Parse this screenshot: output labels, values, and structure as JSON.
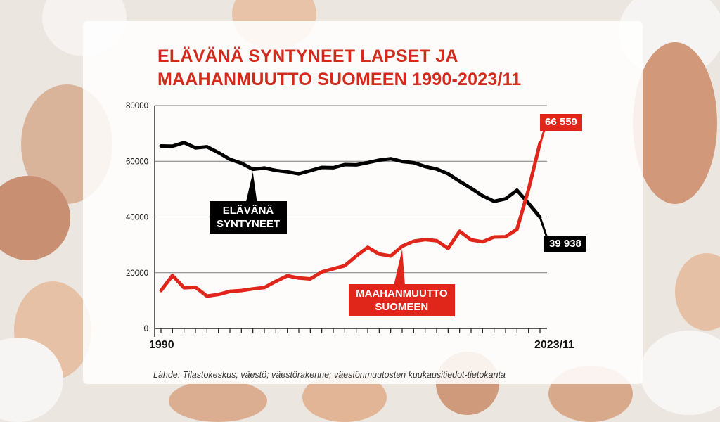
{
  "title_lines": [
    "ELÄVÄNÄ SYNTYNEET LAPSET JA",
    "MAAHANMUUTTO SUOMEEN 1990-2023/11"
  ],
  "source": "Lähde: Tilastokeskus, väestö; väestörakenne; väestönmuutosten kuukausitiedot-tietokanta",
  "colors": {
    "births": "#000000",
    "immigration": "#e0261a",
    "title": "#d42a1c"
  },
  "chart_data": {
    "type": "line",
    "title": "ELÄVÄNÄ SYNTYNEET LAPSET JA MAAHANMUUTTO SUOMEEN 1990-2023/11",
    "x": [
      1990,
      1991,
      1992,
      1993,
      1994,
      1995,
      1996,
      1997,
      1998,
      1999,
      2000,
      2001,
      2002,
      2003,
      2004,
      2005,
      2006,
      2007,
      2008,
      2009,
      2010,
      2011,
      2012,
      2013,
      2014,
      2015,
      2016,
      2017,
      2018,
      2019,
      2020,
      2021,
      2022,
      2023
    ],
    "x_labels": {
      "start": "1990",
      "end": "2023/11"
    },
    "ylim": [
      0,
      80000
    ],
    "yticks": [
      "0",
      "20000",
      "40000",
      "60000",
      "80000"
    ],
    "yticks_values": [
      0,
      20000,
      40000,
      60000,
      80000
    ],
    "grid": true,
    "series": [
      {
        "name": "ELÄVÄNÄ SYNTYNEET",
        "name_lines": [
          "ELÄVÄNÄ",
          "SYNTYNEET"
        ],
        "color": "#000000",
        "values": [
          65500,
          65400,
          66700,
          64800,
          65200,
          63100,
          60700,
          59300,
          57100,
          57600,
          56700,
          56200,
          55500,
          56600,
          57800,
          57700,
          58800,
          58700,
          59500,
          60400,
          60900,
          59900,
          59500,
          58100,
          57200,
          55500,
          52800,
          50300,
          47600,
          45600,
          46500,
          49600,
          44900,
          39938
        ],
        "end_label": "39 938"
      },
      {
        "name": "MAAHANMUUTTO SUOMEEN",
        "name_lines": [
          "MAAHANMUUTTO",
          "SUOMEEN"
        ],
        "color": "#e0261a",
        "values": [
          13600,
          19000,
          14600,
          14800,
          11600,
          12200,
          13300,
          13600,
          14200,
          14700,
          16900,
          18900,
          18100,
          17800,
          20300,
          21400,
          22500,
          26000,
          29100,
          26700,
          26000,
          29500,
          31300,
          31900,
          31500,
          28700,
          34900,
          31800,
          31100,
          32800,
          32900,
          35600,
          49900,
          66559
        ],
        "end_label": "66 559"
      }
    ]
  }
}
